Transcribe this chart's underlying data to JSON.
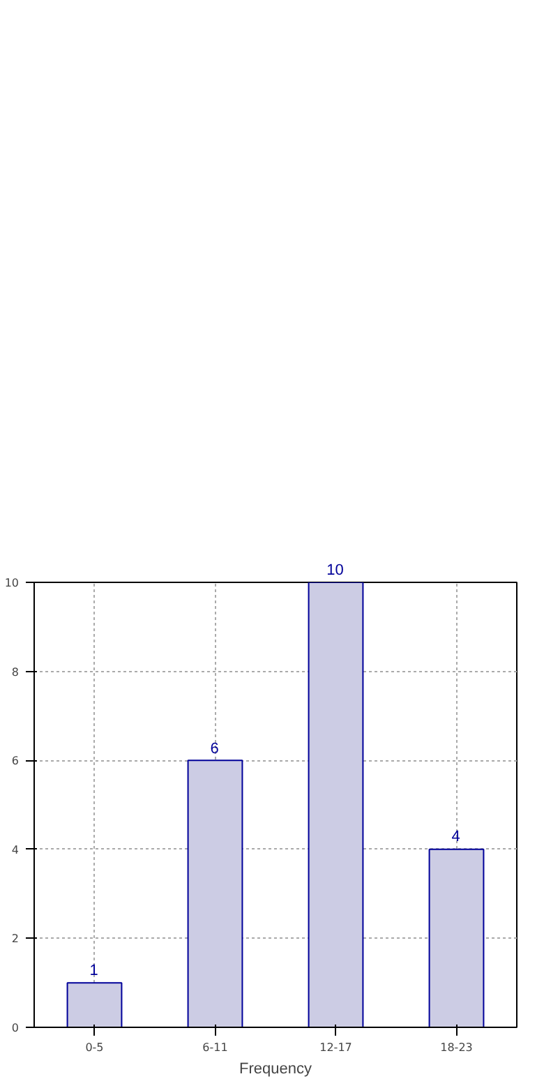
{
  "chart_data": {
    "type": "bar",
    "xlabel": "Frequency",
    "categories": [
      "0-5",
      "6-11",
      "12-17",
      "18-23"
    ],
    "values": [
      1,
      6,
      10,
      4
    ],
    "color": "#ccccE4",
    "ylim": [
      0,
      10
    ],
    "yticks": [
      0,
      2,
      4,
      6,
      8,
      10
    ],
    "grid": true,
    "data_labels": true
  }
}
